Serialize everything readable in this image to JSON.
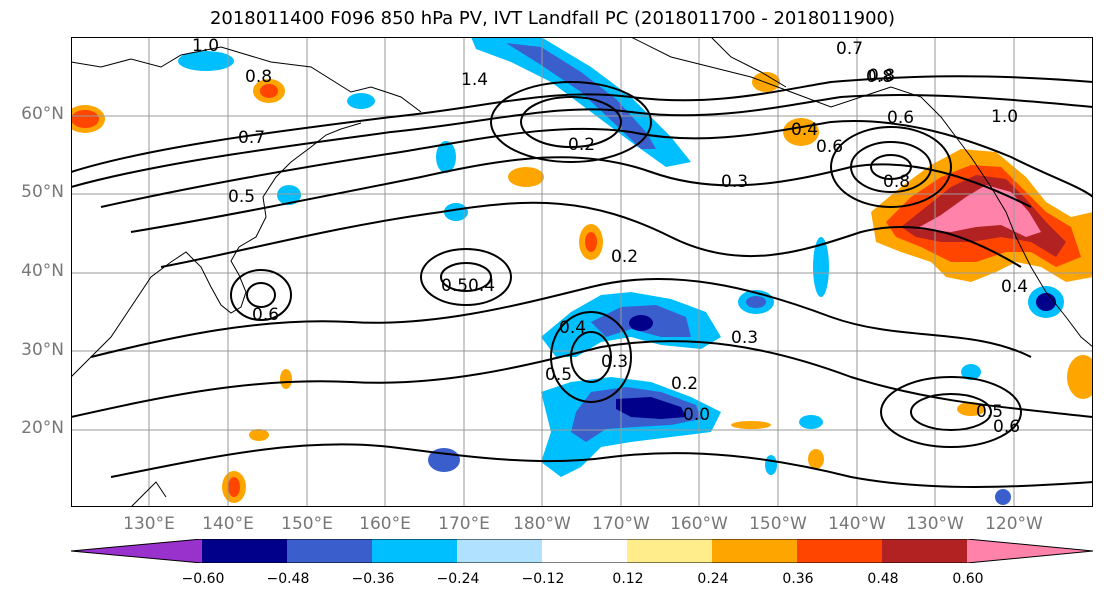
{
  "title": "2018011400 F096 850 hPa PV, IVT Landfall PC (2018011700 - 2018011900)",
  "lat_labels": [
    "60°N",
    "50°N",
    "40°N",
    "30°N",
    "20°N"
  ],
  "lon_labels": [
    "130°E",
    "140°E",
    "150°E",
    "160°E",
    "170°E",
    "180°W",
    "170°W",
    "160°W",
    "150°W",
    "140°W",
    "130°W",
    "120°W"
  ],
  "contour_labels": [
    "1.0",
    "0.8",
    "0.8",
    "0.7",
    "0.5",
    "0.6",
    "1.4",
    "0.2",
    "0.3",
    "0.4",
    "0.5",
    "0.4",
    "0.5",
    "0.3",
    "0.2",
    "0.3",
    "0.2",
    "0.0",
    "0.7",
    "0.8",
    "0.6",
    "0.4",
    "0.6",
    "0.8",
    "1.0",
    "0.4",
    "0.5",
    "0.6"
  ],
  "colorbar": {
    "ticks": [
      "−0.60",
      "−0.48",
      "−0.36",
      "−0.24",
      "−0.12",
      "0.12",
      "0.24",
      "0.36",
      "0.48",
      "0.60"
    ],
    "colors": [
      "#9932cc",
      "#00008b",
      "#3a5fcd",
      "#00bfff",
      "#b0e2ff",
      "#ffffff",
      "#ffec8b",
      "#ffa500",
      "#ff4500",
      "#b22222",
      "#ff82ab"
    ]
  },
  "fill_colors": {
    "neg_strong": "#00008b",
    "neg_mid": "#3a5fcd",
    "neg_light": "#00bfff",
    "neg_pale": "#b0e2ff",
    "pos_pale": "#ffec8b",
    "pos_light": "#ffa500",
    "pos_mid": "#ff4500",
    "pos_strong": "#b22222",
    "pos_max": "#ff82ab"
  }
}
